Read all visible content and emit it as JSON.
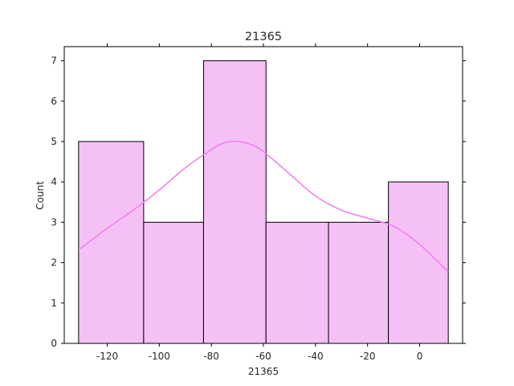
{
  "chart_data": {
    "type": "bar",
    "title": "21365",
    "xlabel": "21365",
    "ylabel": "Count",
    "bin_edges": [
      -131,
      -106,
      -83,
      -59,
      -35,
      -12,
      11
    ],
    "values": [
      5,
      3,
      7,
      3,
      3,
      4
    ],
    "kde": {
      "x": [
        -131,
        -120,
        -110,
        -100,
        -90,
        -80,
        -75,
        -70,
        -65,
        -60,
        -50,
        -40,
        -30,
        -20,
        -10,
        0,
        11
      ],
      "y": [
        2.32,
        2.85,
        3.3,
        3.8,
        4.35,
        4.8,
        4.97,
        5.0,
        4.93,
        4.75,
        4.2,
        3.65,
        3.3,
        3.1,
        2.9,
        2.45,
        1.77
      ]
    },
    "xticks": [
      -120,
      -100,
      -80,
      -60,
      -40,
      -20,
      0
    ],
    "yticks": [
      0,
      1,
      2,
      3,
      4,
      5,
      6,
      7
    ],
    "xlim": [
      -136.5,
      16.5
    ],
    "ylim": [
      0,
      7.35
    ],
    "bar_color": "#f5c0f5",
    "line_color": "#ee82ee",
    "grid": false
  }
}
